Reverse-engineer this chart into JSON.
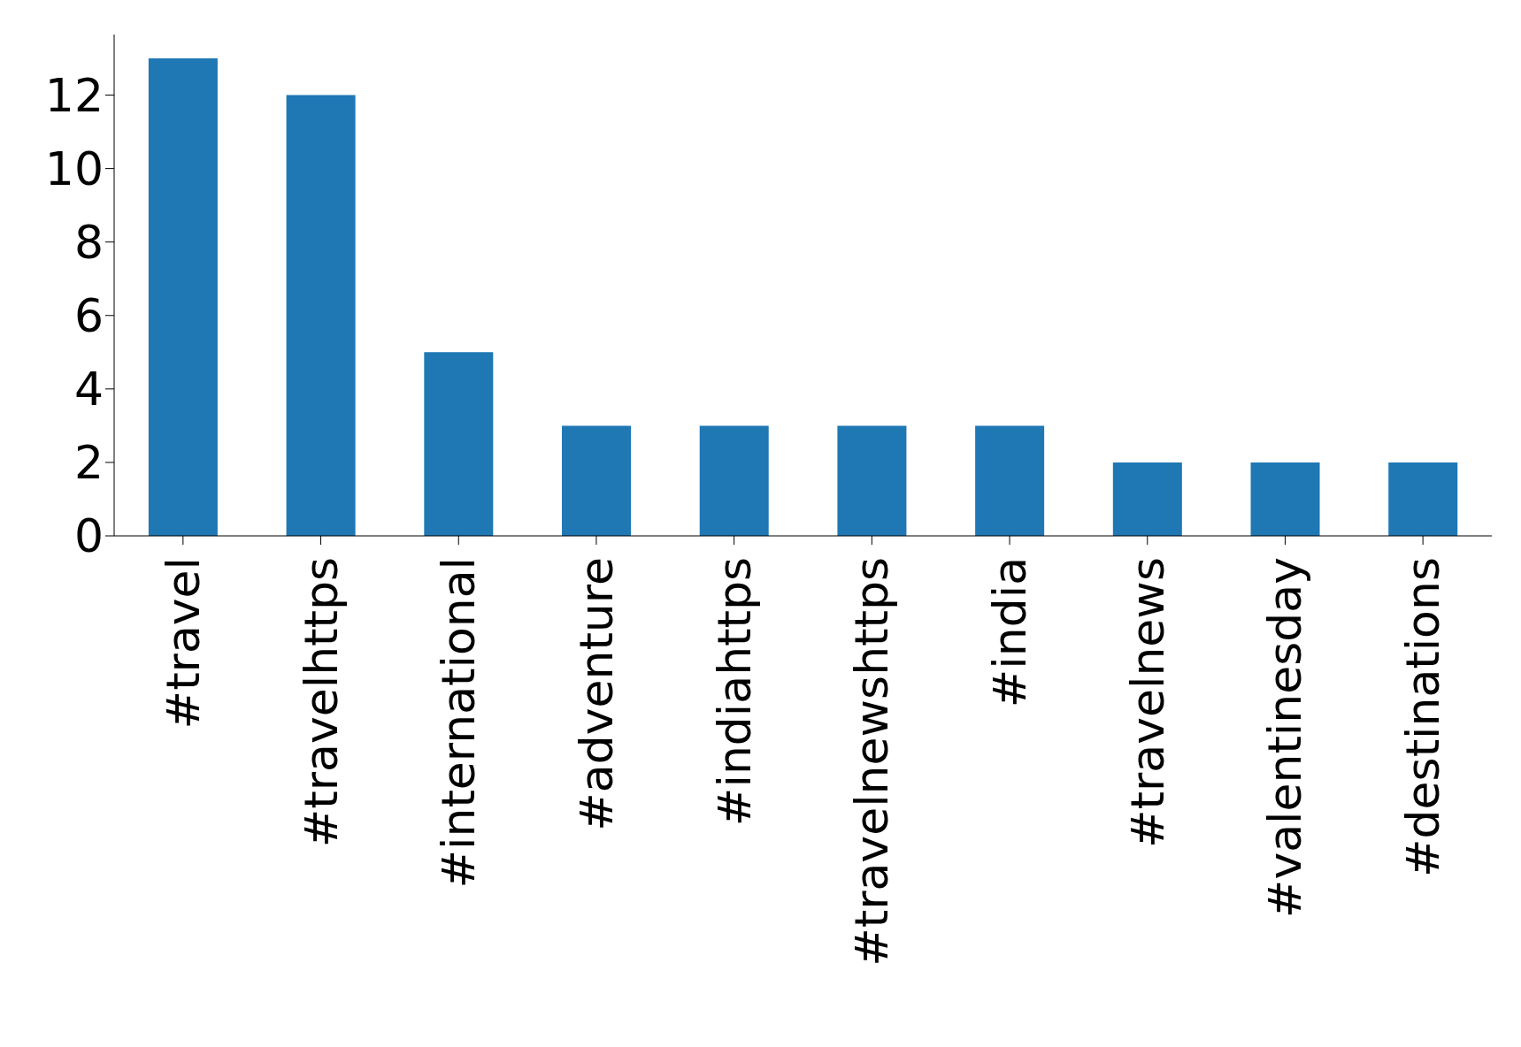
{
  "chart_data": {
    "type": "bar",
    "categories": [
      "#travel",
      "#travelhttps",
      "#international",
      "#adventure",
      "#indiahttps",
      "#travelnewshttps",
      "#india",
      "#travelnews",
      "#valentinesday",
      "#destinations"
    ],
    "values": [
      13,
      12,
      5,
      3,
      3,
      3,
      3,
      2,
      2,
      2
    ],
    "color": "#1f77b4",
    "ylim": [
      0,
      13.65
    ],
    "yticks": [
      0,
      2,
      4,
      6,
      8,
      10,
      12
    ],
    "grid": false,
    "legend": false
  }
}
